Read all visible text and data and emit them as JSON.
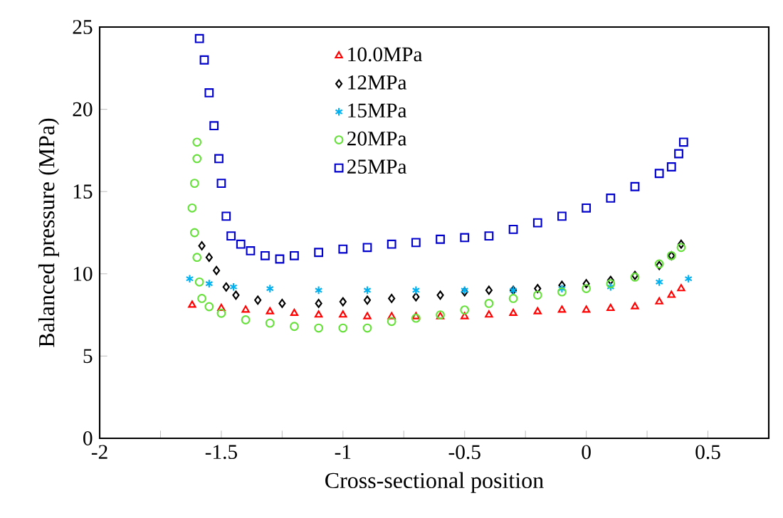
{
  "chart_data": {
    "type": "scatter",
    "xlabel": "Cross-sectional position",
    "ylabel": "Balanced pressure (MPa)",
    "xlim": [
      -2,
      0.75
    ],
    "ylim": [
      0,
      25
    ],
    "xticks": [
      -2,
      {
        "value": -1.75,
        "label": null
      },
      -1.5,
      {
        "value": -1.25,
        "label": null
      },
      -1,
      {
        "value": -0.75,
        "label": null
      },
      -0.5,
      {
        "value": -0.25,
        "label": null
      },
      0,
      {
        "value": 0.25,
        "label": null
      },
      0.5
    ],
    "yticks": [
      0,
      5,
      10,
      15,
      20,
      25
    ],
    "grid": false,
    "legend": "top",
    "series": [
      {
        "name": "10.0MPa",
        "color": "#ff0000",
        "marker": "triangle",
        "x": [
          -1.62,
          -1.5,
          -1.4,
          -1.3,
          -1.2,
          -1.1,
          -1.0,
          -0.9,
          -0.8,
          -0.7,
          -0.6,
          -0.5,
          -0.4,
          -0.3,
          -0.2,
          -0.1,
          0,
          0.1,
          0.2,
          0.3,
          0.35,
          0.39
        ],
        "values": [
          8.1,
          7.9,
          7.8,
          7.7,
          7.6,
          7.5,
          7.5,
          7.4,
          7.4,
          7.4,
          7.4,
          7.4,
          7.5,
          7.6,
          7.7,
          7.8,
          7.8,
          7.9,
          8.0,
          8.3,
          8.7,
          9.1
        ]
      },
      {
        "name": "12MPa",
        "color": "#000000",
        "marker": "diamond",
        "x": [
          -1.58,
          -1.55,
          -1.52,
          -1.48,
          -1.44,
          -1.35,
          -1.25,
          -1.1,
          -1.0,
          -0.9,
          -0.8,
          -0.7,
          -0.6,
          -0.5,
          -0.4,
          -0.3,
          -0.2,
          -0.1,
          0,
          0.1,
          0.2,
          0.3,
          0.35,
          0.39
        ],
        "values": [
          11.7,
          11.0,
          10.2,
          9.2,
          8.7,
          8.4,
          8.2,
          8.2,
          8.3,
          8.4,
          8.5,
          8.6,
          8.7,
          8.9,
          9.0,
          9.0,
          9.1,
          9.3,
          9.4,
          9.6,
          9.9,
          10.5,
          11.1,
          11.8
        ]
      },
      {
        "name": "15MPa",
        "color": "#00b0f0",
        "marker": "cross",
        "x": [
          -1.63,
          -1.55,
          -1.45,
          -1.3,
          -1.1,
          -0.9,
          -0.7,
          -0.5,
          -0.3,
          -0.1,
          0.1,
          0.3,
          0.42
        ],
        "values": [
          9.7,
          9.4,
          9.2,
          9.1,
          9.0,
          9.0,
          9.0,
          9.0,
          9.0,
          9.1,
          9.2,
          9.5,
          9.7
        ]
      },
      {
        "name": "20MPa",
        "color": "#66e03a",
        "marker": "circle",
        "x": [
          -1.6,
          -1.6,
          -1.61,
          -1.62,
          -1.61,
          -1.6,
          -1.59,
          -1.58,
          -1.55,
          -1.5,
          -1.4,
          -1.3,
          -1.2,
          -1.1,
          -1.0,
          -0.9,
          -0.8,
          -0.7,
          -0.6,
          -0.5,
          -0.4,
          -0.3,
          -0.2,
          -0.1,
          0,
          0.1,
          0.2,
          0.3,
          0.35,
          0.39
        ],
        "values": [
          18.0,
          17.0,
          15.5,
          14.0,
          12.5,
          11.0,
          9.5,
          8.5,
          8.0,
          7.6,
          7.2,
          7.0,
          6.8,
          6.7,
          6.7,
          6.7,
          7.1,
          7.3,
          7.5,
          7.8,
          8.2,
          8.5,
          8.7,
          8.9,
          9.1,
          9.4,
          9.8,
          10.6,
          11.1,
          11.6
        ]
      },
      {
        "name": "25MPa",
        "color": "#0000cc",
        "marker": "square",
        "x": [
          -1.59,
          -1.57,
          -1.55,
          -1.53,
          -1.51,
          -1.5,
          -1.48,
          -1.46,
          -1.42,
          -1.38,
          -1.32,
          -1.26,
          -1.2,
          -1.1,
          -1.0,
          -0.9,
          -0.8,
          -0.7,
          -0.6,
          -0.5,
          -0.4,
          -0.3,
          -0.2,
          -0.1,
          0,
          0.1,
          0.2,
          0.3,
          0.35,
          0.38,
          0.4
        ],
        "values": [
          24.3,
          23.0,
          21.0,
          19.0,
          17.0,
          15.5,
          13.5,
          12.3,
          11.8,
          11.4,
          11.1,
          10.9,
          11.1,
          11.3,
          11.5,
          11.6,
          11.8,
          11.9,
          12.1,
          12.2,
          12.3,
          12.7,
          13.1,
          13.5,
          14.0,
          14.6,
          15.3,
          16.1,
          16.5,
          17.3,
          18.0
        ]
      }
    ]
  }
}
